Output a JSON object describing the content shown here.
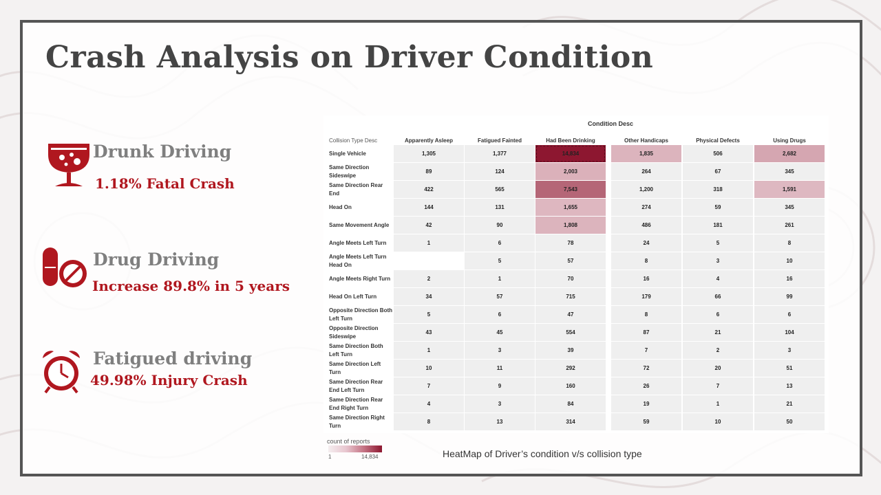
{
  "slide": {
    "title": "Crash Analysis on Driver Condition",
    "caption": "HeatMap of Driver’s condition v/s collision type"
  },
  "stats": [
    {
      "icon": "wine-glass-icon",
      "label": "Drunk Driving",
      "value": "1.18% Fatal Crash"
    },
    {
      "icon": "pill-prohibited-icon",
      "label": "Drug Driving",
      "value": "Increase 89.8% in 5 years"
    },
    {
      "icon": "alarm-clock-icon",
      "label": "Fatigued driving",
      "value": "49.98% Injury Crash"
    }
  ],
  "colors": {
    "accent": "#b0171f",
    "heat_low": "#f5eef0",
    "heat_high": "#8d1730",
    "cell_default": "#efefef",
    "frame": "#555555"
  },
  "chart_data": {
    "type": "heatmap",
    "title": "Condition Desc",
    "row_header": "Collision Type Desc",
    "columns": [
      "Apparently Asleep",
      "Fatigued Fainted",
      "Had Been Drinking",
      "Other Handicaps",
      "Physical Defects",
      "Using Drugs"
    ],
    "rows": [
      {
        "label": "Single Vehicle",
        "values": [
          1305,
          1377,
          14834,
          1835,
          506,
          2682
        ],
        "display": [
          "1,305",
          "1,377",
          "14,834",
          "1,835",
          "506",
          "2,682"
        ]
      },
      {
        "label": "Same Direction Sideswipe",
        "values": [
          89,
          124,
          2003,
          264,
          67,
          345
        ],
        "display": [
          "89",
          "124",
          "2,003",
          "264",
          "67",
          "345"
        ]
      },
      {
        "label": "Same Direction Rear End",
        "values": [
          422,
          565,
          7543,
          1200,
          318,
          1591
        ],
        "display": [
          "422",
          "565",
          "7,543",
          "1,200",
          "318",
          "1,591"
        ]
      },
      {
        "label": "Head On",
        "values": [
          144,
          131,
          1655,
          274,
          59,
          345
        ],
        "display": [
          "144",
          "131",
          "1,655",
          "274",
          "59",
          "345"
        ]
      },
      {
        "label": "Same Movement Angle",
        "values": [
          42,
          90,
          1808,
          486,
          181,
          261
        ],
        "display": [
          "42",
          "90",
          "1,808",
          "486",
          "181",
          "261"
        ]
      },
      {
        "label": "Angle Meets Left Turn",
        "values": [
          1,
          6,
          78,
          24,
          5,
          8
        ],
        "display": [
          "1",
          "6",
          "78",
          "24",
          "5",
          "8"
        ]
      },
      {
        "label": "Angle Meets Left Turn Head On",
        "values": [
          null,
          5,
          57,
          8,
          3,
          10
        ],
        "display": [
          "",
          "5",
          "57",
          "8",
          "3",
          "10"
        ]
      },
      {
        "label": "Angle Meets Right Turn",
        "values": [
          2,
          1,
          70,
          16,
          4,
          16
        ],
        "display": [
          "2",
          "1",
          "70",
          "16",
          "4",
          "16"
        ]
      },
      {
        "label": "Head On Left Turn",
        "values": [
          34,
          57,
          715,
          179,
          66,
          99
        ],
        "display": [
          "34",
          "57",
          "715",
          "179",
          "66",
          "99"
        ]
      },
      {
        "label": "Opposite Direction Both Left Turn",
        "values": [
          5,
          6,
          47,
          8,
          6,
          6
        ],
        "display": [
          "5",
          "6",
          "47",
          "8",
          "6",
          "6"
        ]
      },
      {
        "label": "Opposite Direction Sideswipe",
        "values": [
          43,
          45,
          554,
          87,
          21,
          104
        ],
        "display": [
          "43",
          "45",
          "554",
          "87",
          "21",
          "104"
        ]
      },
      {
        "label": "Same Direction Both Left Turn",
        "values": [
          1,
          3,
          39,
          7,
          2,
          3
        ],
        "display": [
          "1",
          "3",
          "39",
          "7",
          "2",
          "3"
        ]
      },
      {
        "label": "Same Direction Left Turn",
        "values": [
          10,
          11,
          292,
          72,
          20,
          51
        ],
        "display": [
          "10",
          "11",
          "292",
          "72",
          "20",
          "51"
        ]
      },
      {
        "label": "Same Direction Rear End Left Turn",
        "values": [
          7,
          9,
          160,
          26,
          7,
          13
        ],
        "display": [
          "7",
          "9",
          "160",
          "26",
          "7",
          "13"
        ]
      },
      {
        "label": "Same Direction Rear End Right Turn",
        "values": [
          4,
          3,
          84,
          19,
          1,
          21
        ],
        "display": [
          "4",
          "3",
          "84",
          "19",
          "1",
          "21"
        ]
      },
      {
        "label": "Same Direction Right Turn",
        "values": [
          8,
          13,
          314,
          59,
          10,
          50
        ],
        "display": [
          "8",
          "13",
          "314",
          "59",
          "10",
          "50"
        ]
      }
    ],
    "legend": {
      "title": "count of reports",
      "min": 1,
      "max": 14834,
      "min_label": "1",
      "max_label": "14,834"
    }
  }
}
